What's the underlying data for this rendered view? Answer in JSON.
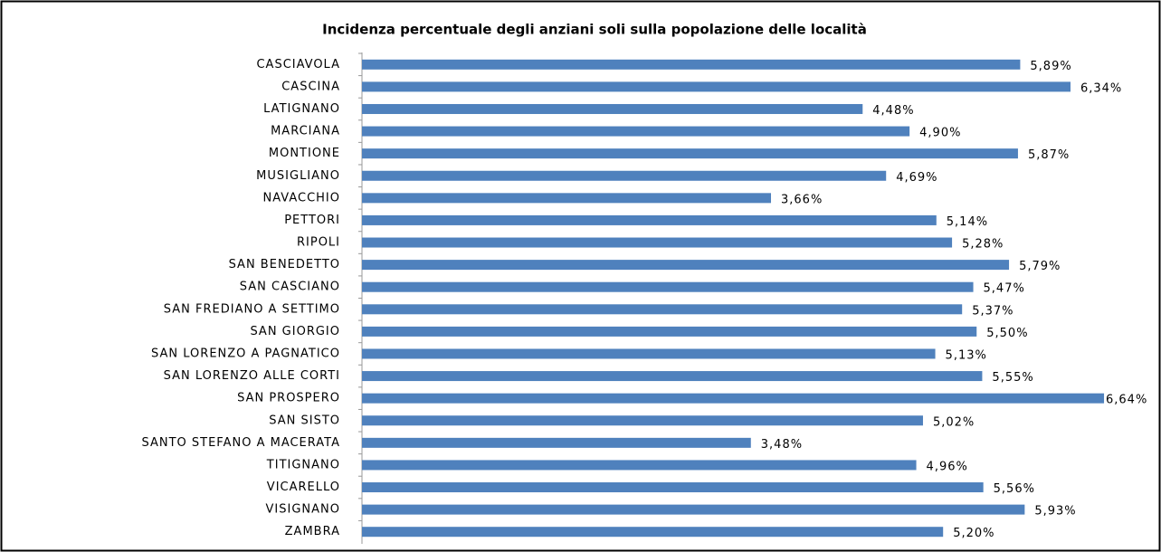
{
  "chart_data": {
    "type": "bar",
    "orientation": "horizontal",
    "title": "Incidenza percentuale degli anziani soli sulla popolazione  delle località",
    "categories": [
      "CASCIAVOLA",
      "CASCINA",
      "LATIGNANO",
      "MARCIANA",
      "MONTIONE",
      "MUSIGLIANO",
      "NAVACCHIO",
      "PETTORI",
      "RIPOLI",
      "SAN BENEDETTO",
      "SAN CASCIANO",
      "SAN FREDIANO A SETTIMO",
      "SAN GIORGIO",
      "SAN LORENZO A PAGNATICO",
      "SAN LORENZO ALLE CORTI",
      "SAN PROSPERO",
      "SAN SISTO",
      "SANTO STEFANO A MACERATA",
      "TITIGNANO",
      "VICARELLO",
      "VISIGNANO",
      "ZAMBRA"
    ],
    "values": [
      5.89,
      6.34,
      4.48,
      4.9,
      5.87,
      4.69,
      3.66,
      5.14,
      5.28,
      5.79,
      5.47,
      5.37,
      5.5,
      5.13,
      5.55,
      6.64,
      5.02,
      3.48,
      4.96,
      5.56,
      5.93,
      5.2
    ],
    "value_labels": [
      "5,89%",
      "6,34%",
      "4,48%",
      "4,90%",
      "5,87%",
      "4,69%",
      "3,66%",
      "5,14%",
      "5,28%",
      "5,79%",
      "5,47%",
      "5,37%",
      "5,50%",
      "5,13%",
      "5,55%",
      "6,64%",
      "5,02%",
      "3,48%",
      "4,96%",
      "5,56%",
      "5,93%",
      "5,20%"
    ],
    "color": "#4f81bd",
    "xlim": [
      0,
      7
    ]
  }
}
